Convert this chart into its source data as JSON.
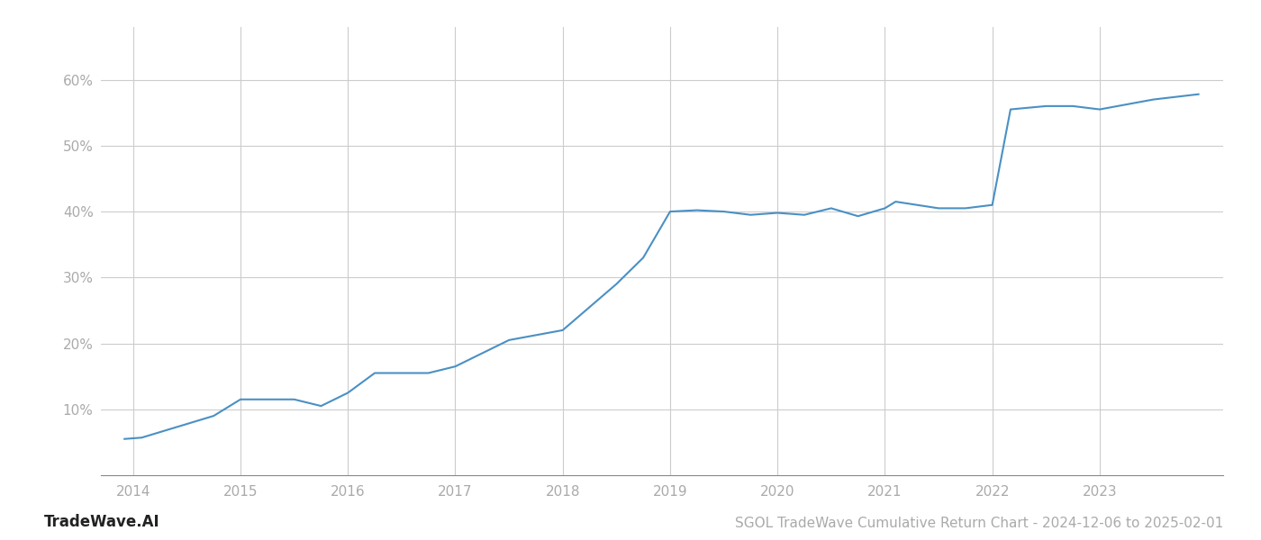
{
  "title": "SGOL TradeWave Cumulative Return Chart - 2024-12-06 to 2025-02-01",
  "watermark": "TradeWave.AI",
  "line_color": "#4a90c4",
  "background_color": "#ffffff",
  "grid_color": "#cccccc",
  "x_data": [
    2013.92,
    2014.08,
    2014.75,
    2015.0,
    2015.5,
    2015.75,
    2016.0,
    2016.25,
    2016.75,
    2017.0,
    2017.5,
    2018.0,
    2018.5,
    2018.75,
    2019.0,
    2019.25,
    2019.5,
    2019.75,
    2020.0,
    2020.25,
    2020.5,
    2020.75,
    2021.0,
    2021.1,
    2021.5,
    2021.75,
    2022.0,
    2022.17,
    2022.5,
    2022.75,
    2023.0,
    2023.5,
    2023.92
  ],
  "y_data": [
    5.5,
    5.7,
    9.0,
    11.5,
    11.5,
    10.5,
    12.5,
    15.5,
    15.5,
    16.5,
    20.5,
    22.0,
    29.0,
    33.0,
    40.0,
    40.2,
    40.0,
    39.5,
    39.8,
    39.5,
    40.5,
    39.3,
    40.5,
    41.5,
    40.5,
    40.5,
    41.0,
    55.5,
    56.0,
    56.0,
    55.5,
    57.0,
    57.8
  ],
  "xlim": [
    2013.7,
    2024.15
  ],
  "ylim": [
    0,
    68
  ],
  "yticks": [
    10,
    20,
    30,
    40,
    50,
    60
  ],
  "ytick_labels": [
    "10%",
    "20%",
    "30%",
    "40%",
    "50%",
    "60%"
  ],
  "xticks": [
    2014,
    2015,
    2016,
    2017,
    2018,
    2019,
    2020,
    2021,
    2022,
    2023
  ],
  "line_width": 1.5,
  "title_fontsize": 11,
  "tick_fontsize": 11,
  "watermark_fontsize": 12,
  "label_color": "#aaaaaa",
  "spine_color": "#cccccc"
}
